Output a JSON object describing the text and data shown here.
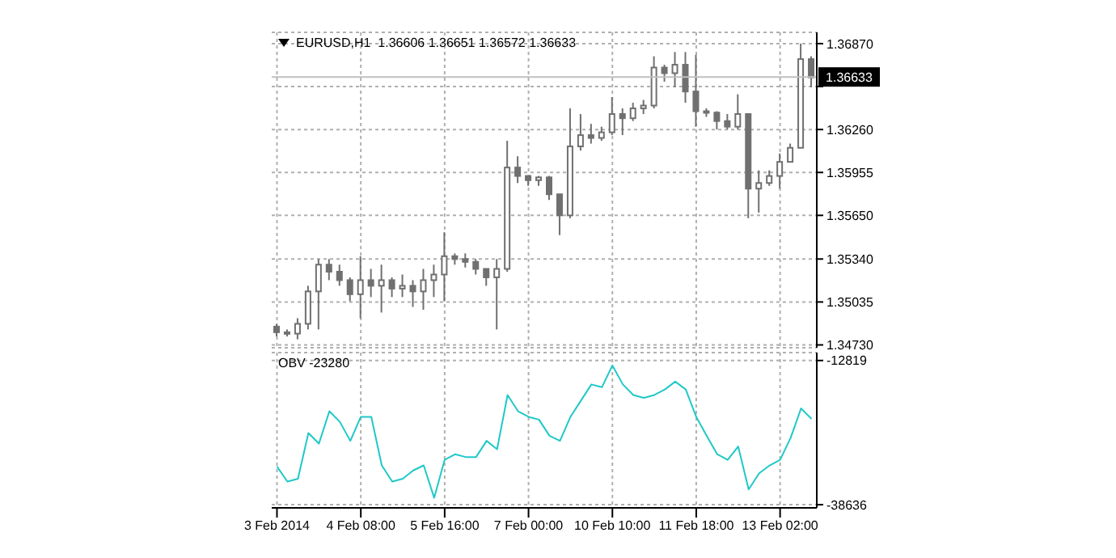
{
  "chart_data": [
    {
      "type": "candlestick",
      "title": "EURUSD,H1  1.36606 1.36651 1.36572 1.36633",
      "color": "#707070",
      "grid": true,
      "tick_labels": "y",
      "categories": [
        null,
        null,
        null,
        null,
        null,
        null,
        null,
        null,
        null,
        null,
        null,
        null,
        null,
        null,
        null,
        null,
        null,
        null,
        null,
        null,
        null,
        null,
        null,
        null,
        null,
        null,
        null,
        null,
        null,
        null,
        null,
        null,
        null,
        null,
        null,
        null,
        null,
        null,
        null,
        null,
        null,
        null,
        null,
        null,
        null,
        null,
        null,
        null,
        null,
        null,
        null,
        null
      ],
      "ohlc": [
        [
          1.3486,
          1.3488,
          1.3479,
          1.3482
        ],
        [
          1.3482,
          1.3484,
          1.3479,
          1.3481
        ],
        [
          1.3481,
          1.3492,
          1.3477,
          1.3488
        ],
        [
          1.3488,
          1.3515,
          1.3484,
          1.3511
        ],
        [
          1.3511,
          1.3534,
          1.3484,
          1.353
        ],
        [
          1.353,
          1.3534,
          1.3519,
          1.3525
        ],
        [
          1.3525,
          1.353,
          1.3515,
          1.3519
        ],
        [
          1.3519,
          1.3521,
          1.3504,
          1.3509
        ],
        [
          1.3509,
          1.3536,
          1.3492,
          1.3519
        ],
        [
          1.3519,
          1.3527,
          1.3507,
          1.3515
        ],
        [
          1.3515,
          1.353,
          1.3496,
          1.3519
        ],
        [
          1.3519,
          1.3521,
          1.3507,
          1.3513
        ],
        [
          1.3513,
          1.3523,
          1.3507,
          1.3515
        ],
        [
          1.3515,
          1.3519,
          1.35,
          1.3511
        ],
        [
          1.3511,
          1.3527,
          1.3498,
          1.3519
        ],
        [
          1.3519,
          1.353,
          1.3507,
          1.3523
        ],
        [
          1.3523,
          1.3553,
          1.3504,
          1.3536
        ],
        [
          1.3536,
          1.3538,
          1.353,
          1.3534
        ],
        [
          1.3534,
          1.3538,
          1.3528,
          1.3532
        ],
        [
          1.3532,
          1.3534,
          1.3523,
          1.3527
        ],
        [
          1.3527,
          1.3527,
          1.3515,
          1.3521
        ],
        [
          1.3521,
          1.3534,
          1.3484,
          1.3527
        ],
        [
          1.3527,
          1.3618,
          1.3525,
          1.3599
        ],
        [
          1.3599,
          1.3607,
          1.3588,
          1.3593
        ],
        [
          1.3593,
          1.3593,
          1.3586,
          1.359
        ],
        [
          1.359,
          1.3593,
          1.3586,
          1.3592
        ],
        [
          1.3592,
          1.3593,
          1.3576,
          1.358
        ],
        [
          1.358,
          1.358,
          1.3551,
          1.3565
        ],
        [
          1.3565,
          1.3641,
          1.3563,
          1.3614
        ],
        [
          1.3614,
          1.3637,
          1.3611,
          1.3622
        ],
        [
          1.3622,
          1.363,
          1.3616,
          1.362
        ],
        [
          1.362,
          1.3628,
          1.3618,
          1.3624
        ],
        [
          1.3624,
          1.3649,
          1.3622,
          1.3637
        ],
        [
          1.3637,
          1.3641,
          1.3622,
          1.3634
        ],
        [
          1.3634,
          1.3645,
          1.3632,
          1.3641
        ],
        [
          1.3641,
          1.3647,
          1.3637,
          1.3643
        ],
        [
          1.3643,
          1.3678,
          1.3641,
          1.367
        ],
        [
          1.367,
          1.3672,
          1.366,
          1.3666
        ],
        [
          1.3666,
          1.3681,
          1.3656,
          1.3672
        ],
        [
          1.3672,
          1.3681,
          1.3645,
          1.3653
        ],
        [
          1.3653,
          1.3679,
          1.3628,
          1.3639
        ],
        [
          1.3639,
          1.3641,
          1.3635,
          1.3638
        ],
        [
          1.3638,
          1.3639,
          1.3626,
          1.3632
        ],
        [
          1.3632,
          1.3637,
          1.3626,
          1.3628
        ],
        [
          1.3628,
          1.3651,
          1.3626,
          1.3637
        ],
        [
          1.3637,
          1.3637,
          1.3563,
          1.3584
        ],
        [
          1.3584,
          1.3597,
          1.3567,
          1.3588
        ],
        [
          1.3588,
          1.3597,
          1.3586,
          1.3593
        ],
        [
          1.3593,
          1.3609,
          1.3584,
          1.3603
        ],
        [
          1.3603,
          1.3616,
          1.3603,
          1.3613
        ],
        [
          1.3613,
          1.3687,
          1.3613,
          1.3676
        ],
        [
          1.3676,
          1.3678,
          1.3656,
          1.3663
        ]
      ],
      "ylim": [
        1.3471,
        1.3695
      ],
      "yticks": [
        {
          "value": 1.3473,
          "label": "1.34730"
        },
        {
          "value": 1.35035,
          "label": "1.35035"
        },
        {
          "value": 1.3534,
          "label": "1.35340"
        },
        {
          "value": 1.3565,
          "label": "1.35650"
        },
        {
          "value": 1.35955,
          "label": "1.35955"
        },
        {
          "value": 1.3626,
          "label": "1.36260"
        },
        {
          "value": 1.36565,
          "label": null
        },
        {
          "value": 1.3687,
          "label": "1.36870"
        }
      ],
      "ref_lines": [
        {
          "axis": "y",
          "value": 1.36633,
          "label": "1.36633",
          "color": "#c0c0c0"
        }
      ]
    },
    {
      "type": "line",
      "title": "OBV -23280",
      "grid": true,
      "categories": [
        "3 Feb 2014",
        null,
        null,
        null,
        null,
        null,
        null,
        null,
        "4 Feb 08:00",
        null,
        null,
        null,
        null,
        null,
        null,
        null,
        "5 Feb 16:00",
        null,
        null,
        null,
        null,
        null,
        null,
        null,
        "7 Feb 00:00",
        null,
        null,
        null,
        null,
        null,
        null,
        null,
        "10 Feb 10:00",
        null,
        null,
        null,
        null,
        null,
        null,
        null,
        "11 Feb 18:00",
        null,
        null,
        null,
        null,
        null,
        null,
        null,
        "13 Feb 02:00",
        null,
        null,
        null
      ],
      "series": [
        {
          "color": "#20c8c8",
          "values": [
            -31800,
            -34500,
            -34000,
            -25800,
            -27700,
            -21900,
            -23800,
            -27200,
            -22900,
            -22900,
            -31600,
            -34500,
            -34000,
            -32500,
            -31600,
            -37400,
            -30600,
            -29600,
            -30100,
            -30100,
            -27200,
            -28700,
            -19000,
            -21900,
            -22900,
            -23400,
            -26300,
            -27200,
            -22900,
            -20000,
            -17100,
            -17600,
            -13700,
            -17100,
            -19000,
            -19500,
            -19000,
            -18000,
            -16600,
            -18000,
            -22900,
            -26300,
            -29600,
            -30600,
            -28200,
            -35900,
            -33000,
            -31600,
            -30600,
            -26700,
            -21400,
            -23280
          ]
        }
      ],
      "ylim": [
        -39200,
        -11400
      ],
      "yticks": [
        -12819,
        -38636
      ]
    }
  ]
}
